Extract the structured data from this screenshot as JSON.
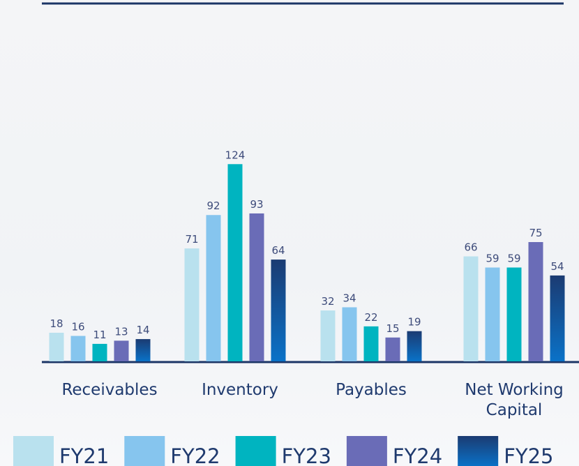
{
  "chart_data": {
    "type": "bar",
    "categories": [
      "Receivables",
      "Inventory",
      "Payables",
      "Net Working Capital"
    ],
    "series": [
      {
        "name": "FY21",
        "color": "#b9e1ee",
        "values": [
          18,
          71,
          32,
          66
        ]
      },
      {
        "name": "FY22",
        "color": "#86c5ee",
        "values": [
          16,
          92,
          34,
          59
        ]
      },
      {
        "name": "FY23",
        "color": "#00b4c0",
        "values": [
          11,
          124,
          22,
          59
        ]
      },
      {
        "name": "FY24",
        "color": "#6a6cb7",
        "values": [
          13,
          93,
          15,
          75
        ]
      },
      {
        "name": "FY25",
        "color": "#1b3b72",
        "values": [
          14,
          64,
          19,
          54
        ]
      }
    ],
    "ylim": [
      0,
      130
    ]
  }
}
